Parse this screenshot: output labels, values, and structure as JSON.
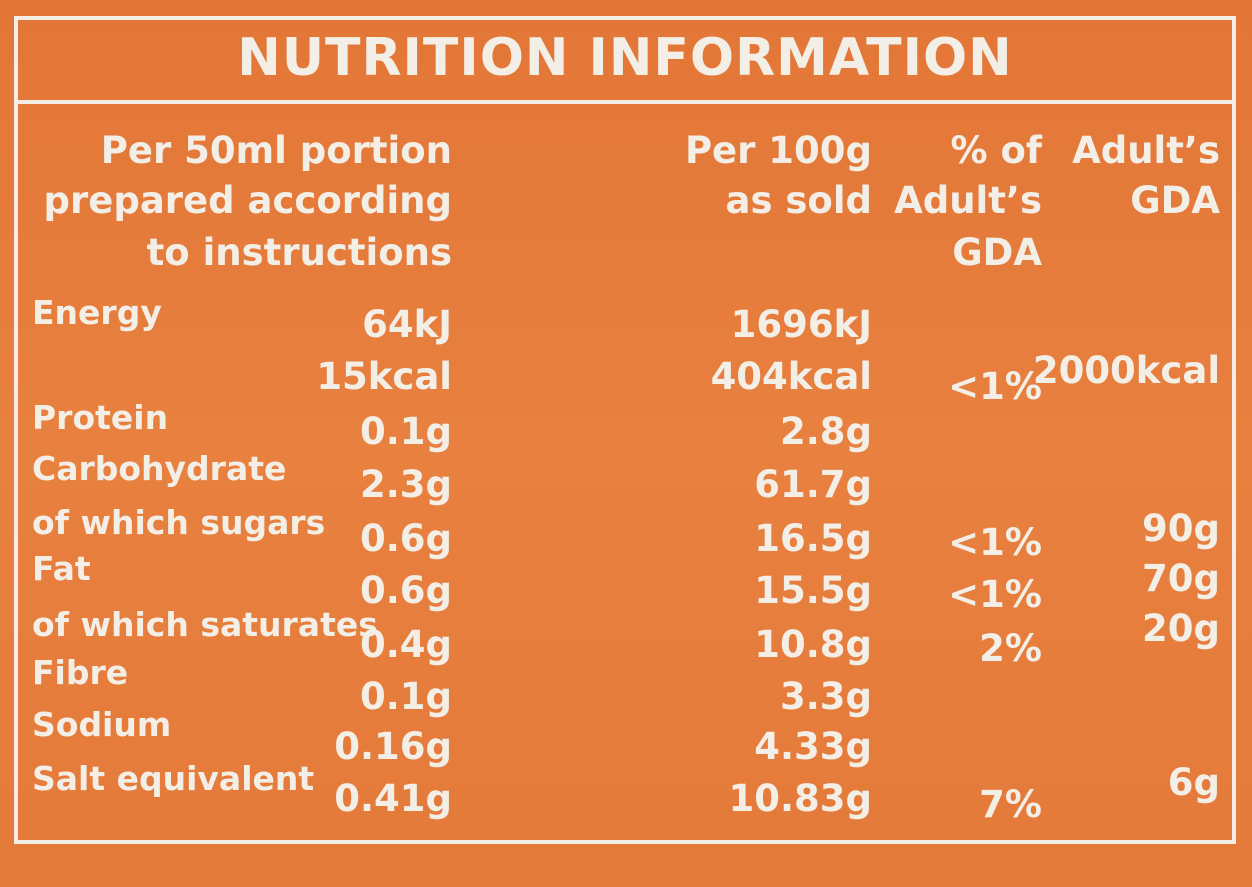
{
  "title": "NUTRITION INFORMATION",
  "headers": {
    "portion": [
      "Per 50ml portion",
      "prepared according",
      "to instructions"
    ],
    "per100": [
      "Per 100g",
      "as sold"
    ],
    "pct": [
      "% of",
      "Adult’s",
      "GDA"
    ],
    "gda": [
      "Adult’s",
      "GDA"
    ]
  },
  "rows": [
    {
      "name": "Energy",
      "portion": "64kJ",
      "per100": "1696kJ",
      "pct": "",
      "gda": ""
    },
    {
      "name": "",
      "portion": "15kcal",
      "per100": "404kcal",
      "pct": "<1%",
      "gda": "2000kcal"
    },
    {
      "name": "Protein",
      "portion": "0.1g",
      "per100": "2.8g",
      "pct": "",
      "gda": ""
    },
    {
      "name": "Carbohydrate",
      "portion": "2.3g",
      "per100": "61.7g",
      "pct": "",
      "gda": ""
    },
    {
      "name": "of which sugars",
      "portion": "0.6g",
      "per100": "16.5g",
      "pct": "<1%",
      "gda": "90g"
    },
    {
      "name": "Fat",
      "portion": "0.6g",
      "per100": "15.5g",
      "pct": "<1%",
      "gda": "70g"
    },
    {
      "name": "of which saturates",
      "portion": "0.4g",
      "per100": "10.8g",
      "pct": "2%",
      "gda": "20g"
    },
    {
      "name": "Fibre",
      "portion": "0.1g",
      "per100": "3.3g",
      "pct": "",
      "gda": ""
    },
    {
      "name": "Sodium",
      "portion": "0.16g",
      "per100": "4.33g",
      "pct": "",
      "gda": ""
    },
    {
      "name": "Salt equivalent",
      "portion": "0.41g",
      "per100": "10.83g",
      "pct": "7%",
      "gda": "6g"
    }
  ]
}
